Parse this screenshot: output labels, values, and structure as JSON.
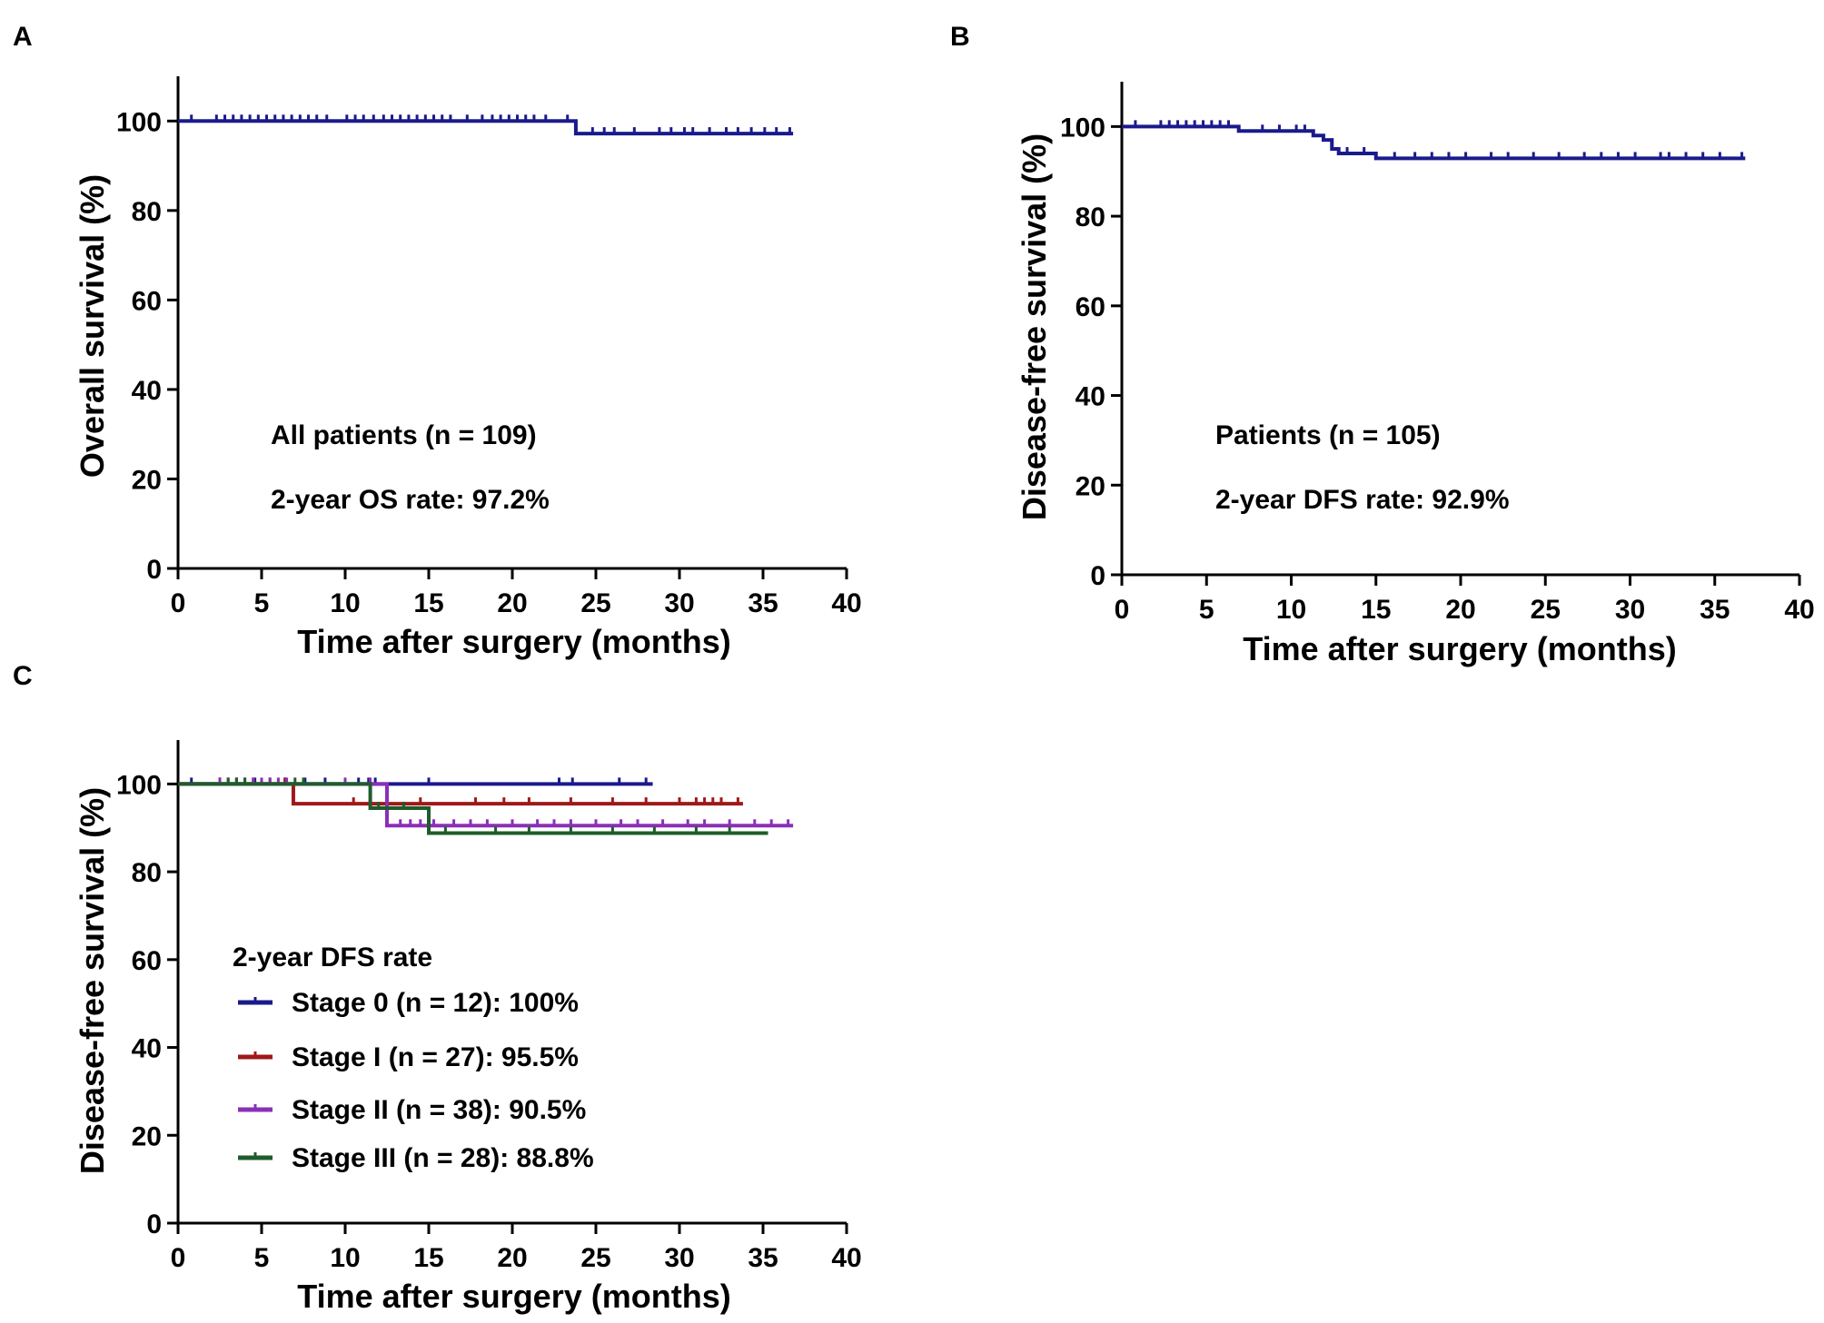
{
  "chart_data": [
    {
      "id": "A",
      "type": "line",
      "panel_label": "A",
      "xlabel": "Time after surgery (months)",
      "ylabel": "Overall survival  (%)",
      "xlim": [
        0,
        40
      ],
      "ylim": [
        0,
        110
      ],
      "xticks": [
        0,
        5,
        10,
        15,
        20,
        25,
        30,
        35,
        40
      ],
      "yticks": [
        0,
        20,
        40,
        60,
        80,
        100
      ],
      "annotations": [
        "All patients (n = 109)",
        "2-year OS rate: 97.2%"
      ],
      "series": [
        {
          "name": "All patients",
          "color": "#1a1a8c",
          "steps": [
            [
              0,
              100
            ],
            [
              23.8,
              97.2
            ],
            [
              36.8,
              97.2
            ]
          ],
          "censors": [
            0.8,
            2.3,
            2.8,
            3.3,
            3.8,
            4.3,
            4.8,
            5.3,
            5.8,
            6.3,
            6.8,
            7.3,
            7.8,
            8.3,
            8.9,
            10.1,
            10.6,
            11.1,
            11.7,
            12.3,
            12.8,
            13.3,
            13.8,
            14.3,
            14.8,
            15.3,
            15.8,
            16.3,
            17.3,
            18.2,
            18.8,
            19.3,
            19.8,
            20.3,
            20.8,
            21.3,
            22.0,
            23.3,
            24.8,
            25.5,
            26.1,
            27.3,
            28.8,
            29.5,
            30.3,
            30.8,
            31.8,
            32.8,
            33.5,
            34.3,
            35.1,
            35.8,
            36.6
          ]
        }
      ]
    },
    {
      "id": "B",
      "type": "line",
      "panel_label": "B",
      "xlabel": "Time after surgery (months)",
      "ylabel": "Disease-free survival  (%)",
      "xlim": [
        0,
        40
      ],
      "ylim": [
        0,
        110
      ],
      "xticks": [
        0,
        5,
        10,
        15,
        20,
        25,
        30,
        35,
        40
      ],
      "yticks": [
        0,
        20,
        40,
        60,
        80,
        100
      ],
      "annotations": [
        "Patients (n = 105)",
        "2-year DFS rate: 92.9%"
      ],
      "series": [
        {
          "name": "Patients",
          "color": "#1a1a8c",
          "steps": [
            [
              0,
              100
            ],
            [
              6.9,
              99.0
            ],
            [
              11.3,
              98.0
            ],
            [
              11.9,
              97.0
            ],
            [
              12.4,
              95.0
            ],
            [
              12.8,
              94.0
            ],
            [
              15.0,
              92.9
            ],
            [
              36.8,
              92.9
            ]
          ],
          "censors": [
            0.8,
            2.3,
            2.8,
            3.3,
            3.8,
            4.3,
            4.8,
            5.3,
            5.8,
            6.3,
            8.3,
            9.3,
            10.3,
            10.8,
            13.3,
            14.3,
            16.1,
            17.3,
            18.3,
            19.3,
            20.3,
            21.8,
            22.8,
            24.3,
            25.8,
            27.3,
            28.3,
            29.3,
            30.3,
            31.8,
            32.3,
            33.3,
            34.3,
            35.3,
            36.6
          ]
        }
      ]
    },
    {
      "id": "C",
      "type": "line",
      "panel_label": "C",
      "xlabel": "Time after surgery (months)",
      "ylabel": "Disease-free survival  (%)",
      "xlim": [
        0,
        40
      ],
      "ylim": [
        0,
        110
      ],
      "xticks": [
        0,
        5,
        10,
        15,
        20,
        25,
        30,
        35,
        40
      ],
      "yticks": [
        0,
        20,
        40,
        60,
        80,
        100
      ],
      "legend_title": "2-year DFS rate",
      "series": [
        {
          "name": "Stage 0 (n = 12): 100%",
          "color": "#1a1a8c",
          "steps": [
            [
              0,
              100
            ],
            [
              28.4,
              100
            ]
          ],
          "censors": [
            0.8,
            2.5,
            4.6,
            6.4,
            7.6,
            8.8,
            10.8,
            11.4,
            11.8,
            15.0,
            22.8,
            23.6,
            26.4,
            28.0
          ]
        },
        {
          "name": "Stage I (n = 27): 95.5%",
          "color": "#a01818",
          "steps": [
            [
              0,
              100
            ],
            [
              6.9,
              95.5
            ],
            [
              33.8,
              95.5
            ]
          ],
          "censors": [
            2.5,
            3.5,
            4.5,
            5.5,
            6.4,
            10.5,
            14.5,
            17.8,
            19.5,
            21.0,
            23.5,
            26.0,
            28.0,
            30.0,
            31.0,
            31.5,
            32.0,
            32.5,
            33.5
          ]
        },
        {
          "name": "Stage II (n = 38): 90.5%",
          "color": "#8a2fb8",
          "steps": [
            [
              0,
              100
            ],
            [
              12.5,
              90.5
            ],
            [
              36.8,
              90.5
            ]
          ],
          "censors": [
            2.5,
            3.0,
            3.5,
            4.0,
            4.5,
            5.0,
            5.5,
            6.0,
            6.5,
            10.0,
            11.5,
            13.3,
            13.9,
            14.5,
            15.3,
            16.5,
            17.5,
            18.5,
            20.0,
            21.5,
            22.5,
            23.5,
            25.0,
            26.5,
            27.5,
            29.0,
            30.5,
            31.5,
            33.0,
            34.5,
            35.5,
            36.5
          ]
        },
        {
          "name": "Stage III (n = 28): 88.8%",
          "color": "#1f5c2b",
          "steps": [
            [
              0,
              100
            ],
            [
              11.5,
              94.5
            ],
            [
              15.0,
              88.8
            ],
            [
              35.3,
              88.8
            ]
          ],
          "censors": [
            3.0,
            3.5,
            4.0,
            7.0,
            7.5,
            12.0,
            13.5,
            16.0,
            19.0,
            21.0,
            23.5,
            26.0,
            28.5,
            31.0,
            33.0
          ]
        }
      ]
    }
  ]
}
